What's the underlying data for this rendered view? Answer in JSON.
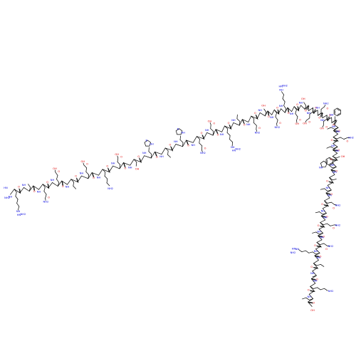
{
  "image": {
    "kind": "skeletal-structure",
    "background": "#ffffff"
  },
  "colors": {
    "bond": "#000000",
    "oxygen": "#e00000",
    "nitrogen": "#0000e0",
    "carbon": "#000000"
  },
  "atom_labels": {
    "oxygen": "O",
    "nitrogen": "N",
    "hydroxyl": "OH",
    "amine": "NH",
    "amine2": "NH2",
    "imine": "HN",
    "hydrogen": "H"
  },
  "residue_groups": [
    "arg",
    "val",
    "gln",
    "glu",
    "ile",
    "glu",
    "lys",
    "asp",
    "thr",
    "his",
    "ile",
    "his",
    "gln",
    "asp",
    "arg",
    "ile",
    "gln",
    "thr",
    "gln",
    "arg",
    "glu",
    "thr",
    "glu",
    "asn",
    "asp",
    "phe",
    "leu",
    "gln",
    "leu",
    "thr",
    "trp",
    "val",
    "leu",
    "asn",
    "ile",
    "gln",
    "leu",
    "asn",
    "arg",
    "ile",
    "ala",
    "lys",
    "leu"
  ]
}
